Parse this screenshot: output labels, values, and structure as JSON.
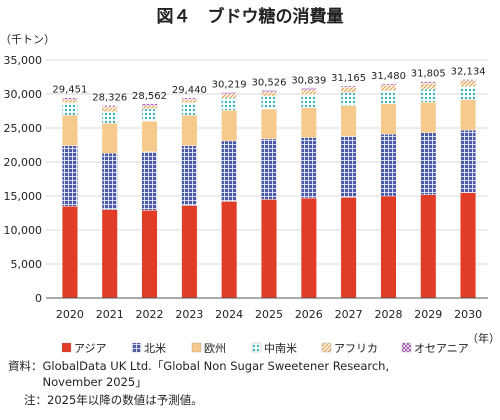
{
  "chart_data": {
    "type": "bar",
    "stacked": true,
    "title": "図４　ブドウ糖の消費量",
    "ylabel": "（千トン）",
    "xlabel": "（年）",
    "ylim": [
      0,
      35000
    ],
    "yticks": [
      "0",
      "5,000",
      "10,000",
      "15,000",
      "20,000",
      "25,000",
      "30,000",
      "35,000"
    ],
    "categories": [
      "2020",
      "2021",
      "2022",
      "2023",
      "2024",
      "2025",
      "2026",
      "2027",
      "2028",
      "2029",
      "2030"
    ],
    "totals": [
      "29,451",
      "28,326",
      "28,562",
      "29,440",
      "30,219",
      "30,526",
      "30,839",
      "31,165",
      "31,480",
      "31,805",
      "32,134"
    ],
    "series": [
      {
        "name": "アジア",
        "color": "#e03c26",
        "values": [
          13500,
          13000,
          12900,
          13600,
          14200,
          14500,
          14700,
          14800,
          15000,
          15200,
          15500
        ]
      },
      {
        "name": "北米",
        "color": "#4b5aa8",
        "values": [
          8900,
          8300,
          8600,
          8800,
          8900,
          8900,
          8900,
          9000,
          9100,
          9100,
          9200
        ]
      },
      {
        "name": "欧州",
        "color": "#f6c98c",
        "values": [
          4500,
          4400,
          4500,
          4500,
          4500,
          4400,
          4400,
          4500,
          4500,
          4500,
          4500
        ]
      },
      {
        "name": "中南米",
        "color": "#7fd3d6",
        "values": [
          1800,
          1700,
          1800,
          1800,
          1800,
          1900,
          1900,
          1900,
          1900,
          1900,
          1900
        ]
      },
      {
        "name": "アフリカ",
        "color": "#f2d9b8",
        "values": [
          500,
          700,
          500,
          550,
          600,
          600,
          700,
          800,
          800,
          900,
          850
        ]
      },
      {
        "name": "オセアニア",
        "color": "#b778c0",
        "values": [
          251,
          226,
          262,
          190,
          219,
          226,
          239,
          165,
          180,
          205,
          184
        ]
      }
    ]
  },
  "source_lines": [
    "資料：GlobalData UK Ltd.「Global Non Sugar Sweetener Research,",
    "　　　November 2025」",
    "注：2025年以降の数値は予測値。"
  ]
}
